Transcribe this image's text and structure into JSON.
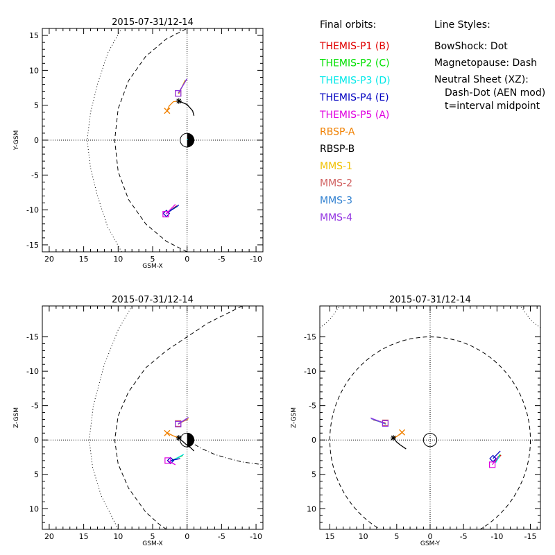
{
  "colors": {
    "THEMIS-P1": "#e00000",
    "THEMIS-P2": "#00e000",
    "THEMIS-P3": "#00e8e8",
    "THEMIS-P4": "#0000c0",
    "THEMIS-P5": "#e000e0",
    "RBSP-A": "#f08000",
    "RBSP-B": "#000000",
    "MMS-1": "#f0c000",
    "MMS-2": "#d06060",
    "MMS-3": "#3080d0",
    "MMS-4": "#9030e0"
  },
  "legend": {
    "orbits_heading": "Final orbits:",
    "orbits": [
      {
        "label": "THEMIS-P1 (B)",
        "key": "THEMIS-P1"
      },
      {
        "label": "THEMIS-P2 (C)",
        "key": "THEMIS-P2"
      },
      {
        "label": "THEMIS-P3 (D)",
        "key": "THEMIS-P3"
      },
      {
        "label": "THEMIS-P4 (E)",
        "key": "THEMIS-P4"
      },
      {
        "label": "THEMIS-P5 (A)",
        "key": "THEMIS-P5"
      },
      {
        "label": "RBSP-A",
        "key": "RBSP-A"
      },
      {
        "label": "RBSP-B",
        "key": "RBSP-B"
      },
      {
        "label": "MMS-1",
        "key": "MMS-1"
      },
      {
        "label": "MMS-2",
        "key": "MMS-2"
      },
      {
        "label": "MMS-3",
        "key": "MMS-3"
      },
      {
        "label": "MMS-4",
        "key": "MMS-4"
      }
    ],
    "styles_heading": "Line Styles:",
    "styles": [
      {
        "text": "BowShock: Dot",
        "indent": false
      },
      {
        "text": "Magnetopause: Dash",
        "indent": false
      },
      {
        "text": "Neutral Sheet (XZ):",
        "indent": false
      },
      {
        "text": "Dash-Dot (AEN mod)",
        "indent": true
      },
      {
        "text": "t=interval midpoint",
        "indent": true
      }
    ]
  },
  "chart_data": [
    {
      "id": "xy",
      "type": "line",
      "title": "2015-07-31/12-14",
      "xlabel": "GSM-X",
      "ylabel": "Y-GSM",
      "xlim": [
        21,
        -11
      ],
      "ylim": [
        16,
        -16
      ],
      "xticks": [
        20,
        15,
        10,
        5,
        0,
        -5,
        -10
      ],
      "xtick_labels": [
        "20",
        "15",
        "10",
        "5",
        "0",
        "-5",
        "-10"
      ],
      "yticks": [
        -15,
        -10,
        -5,
        0,
        5,
        10,
        15
      ],
      "ytick_labels": [
        "-15",
        "-10",
        "-5",
        "0",
        "5",
        "10",
        "15"
      ],
      "earth": "half",
      "boundaries": [
        {
          "name": "bow_shock",
          "style": "dot",
          "points": [
            [
              9.5,
              -16
            ],
            [
              11.5,
              -12.5
            ],
            [
              13,
              -8
            ],
            [
              14,
              -4
            ],
            [
              14.5,
              0
            ],
            [
              14,
              4
            ],
            [
              13,
              8
            ],
            [
              11.5,
              12.5
            ],
            [
              9.5,
              16
            ]
          ]
        },
        {
          "name": "magnetopause",
          "style": "dash",
          "points": [
            [
              0,
              -16
            ],
            [
              3,
              -14.5
            ],
            [
              6,
              -12
            ],
            [
              8.5,
              -8.5
            ],
            [
              10,
              -4.5
            ],
            [
              10.5,
              0
            ],
            [
              10,
              4.5
            ],
            [
              8.5,
              8.5
            ],
            [
              6,
              12
            ],
            [
              3,
              14.5
            ],
            [
              0,
              16
            ]
          ]
        }
      ],
      "series": [
        {
          "key": "THEMIS-P3",
          "points": [
            [
              -0.1,
              0.09
            ],
            [
              0.05,
              0.08
            ]
          ],
          "marker": "none"
        },
        {
          "key": "THEMIS-P1",
          "points": [
            [
              2.9,
              -10.4
            ],
            [
              1.5,
              -9.4
            ]
          ],
          "marker": "none"
        },
        {
          "key": "THEMIS-P2",
          "points": [
            [
              2.8,
              -10.3
            ],
            [
              1.4,
              -9.5
            ]
          ],
          "marker": "none"
        },
        {
          "key": "THEMIS-P3",
          "points": [
            [
              2.7,
              -10.2
            ],
            [
              1.3,
              -9.4
            ]
          ],
          "marker": "none"
        },
        {
          "key": "THEMIS-P4",
          "points": [
            [
              3.0,
              -10.5
            ],
            [
              1.2,
              -9.3
            ]
          ],
          "marker": "diamond"
        },
        {
          "key": "THEMIS-P5",
          "points": [
            [
              3.1,
              -10.6
            ],
            [
              1.7,
              -9.2
            ]
          ],
          "marker": "square"
        },
        {
          "key": "RBSP-A",
          "points": [
            [
              1.2,
              5.6
            ],
            [
              2.0,
              5.5
            ],
            [
              2.6,
              4.9
            ],
            [
              2.9,
              4.2
            ]
          ],
          "marker": "x_end"
        },
        {
          "key": "RBSP-B",
          "points": [
            [
              1.2,
              5.6
            ],
            [
              0.0,
              5.1
            ],
            [
              -0.8,
              4.2
            ],
            [
              -1.0,
              3.5
            ]
          ],
          "marker": "asterisk_start"
        },
        {
          "key": "MMS-1",
          "points": [
            [
              1.2,
              6.6
            ],
            [
              0.3,
              8.6
            ]
          ],
          "marker": "none"
        },
        {
          "key": "MMS-2",
          "points": [
            [
              1.3,
              6.7
            ],
            [
              0.2,
              8.5
            ]
          ],
          "marker": "square"
        },
        {
          "key": "MMS-3",
          "points": [
            [
              1.2,
              6.8
            ],
            [
              0.1,
              8.7
            ]
          ],
          "marker": "none"
        },
        {
          "key": "MMS-4",
          "points": [
            [
              1.3,
              6.7
            ],
            [
              0.0,
              8.8
            ]
          ],
          "marker": "square"
        }
      ]
    },
    {
      "id": "xz",
      "type": "line",
      "title": "2015-07-31/12-14",
      "xlabel": "GSM-X",
      "ylabel": "Z-GSM",
      "xlim": [
        21,
        -11
      ],
      "ylim": [
        -19.5,
        13
      ],
      "xticks": [
        20,
        15,
        10,
        5,
        0,
        -5,
        -10
      ],
      "xtick_labels": [
        "20",
        "15",
        "10",
        "5",
        "0",
        "-5",
        "-10"
      ],
      "yticks": [
        -15,
        -10,
        -5,
        0,
        5,
        10
      ],
      "ytick_labels": [
        "-15",
        "-10",
        "-5",
        "0",
        "5",
        "10"
      ],
      "earth": "half",
      "boundaries": [
        {
          "name": "bow_shock",
          "style": "dot",
          "points": [
            [
              8,
              -19.5
            ],
            [
              10,
              -16
            ],
            [
              12,
              -11
            ],
            [
              13.6,
              -5
            ],
            [
              14.2,
              0
            ],
            [
              13.7,
              4
            ],
            [
              12.5,
              8
            ],
            [
              11,
              11
            ],
            [
              10,
              13
            ]
          ]
        },
        {
          "name": "magnetopause",
          "style": "dash",
          "points": [
            [
              -8,
              -19.5
            ],
            [
              -3,
              -17
            ],
            [
              0,
              -15
            ],
            [
              3,
              -13
            ],
            [
              6,
              -10.5
            ],
            [
              8.5,
              -7
            ],
            [
              10,
              -3.5
            ],
            [
              10.5,
              0
            ],
            [
              10,
              3.5
            ],
            [
              8.5,
              7
            ],
            [
              6,
              10.5
            ],
            [
              4,
              12.3
            ],
            [
              3,
              13
            ]
          ]
        },
        {
          "name": "neutral_sheet",
          "style": "dashdot",
          "points": [
            [
              0,
              0
            ],
            [
              -2,
              1.2
            ],
            [
              -4,
              2.1
            ],
            [
              -6,
              2.7
            ],
            [
              -8,
              3.2
            ],
            [
              -11,
              3.6
            ]
          ]
        }
      ],
      "series": [
        {
          "key": "THEMIS-P1",
          "points": [
            [
              2.4,
              3.1
            ],
            [
              0.6,
              2.2
            ]
          ],
          "marker": "none"
        },
        {
          "key": "THEMIS-P2",
          "points": [
            [
              2.3,
              3.0
            ],
            [
              0.7,
              2.3
            ]
          ],
          "marker": "none"
        },
        {
          "key": "THEMIS-P3",
          "points": [
            [
              2.5,
              3.2
            ],
            [
              0.5,
              2.1
            ]
          ],
          "marker": "none"
        },
        {
          "key": "THEMIS-P4",
          "points": [
            [
              2.4,
              3.0
            ],
            [
              1.0,
              2.7
            ]
          ],
          "marker": "diamond"
        },
        {
          "key": "THEMIS-P5",
          "points": [
            [
              2.8,
              3.0
            ],
            [
              1.7,
              3.6
            ]
          ],
          "marker": "square"
        },
        {
          "key": "RBSP-A",
          "points": [
            [
              1.2,
              -0.3
            ],
            [
              2.0,
              -0.6
            ],
            [
              2.6,
              -0.9
            ],
            [
              2.9,
              -1.0
            ]
          ],
          "marker": "x_end"
        },
        {
          "key": "RBSP-B",
          "points": [
            [
              1.2,
              -0.3
            ],
            [
              0.2,
              0.6
            ],
            [
              -0.6,
              1.2
            ],
            [
              -1.0,
              1.6
            ]
          ],
          "marker": "asterisk_start"
        },
        {
          "key": "MMS-1",
          "points": [
            [
              1.3,
              -2.3
            ],
            [
              -0.2,
              -3.1
            ]
          ],
          "marker": "none"
        },
        {
          "key": "MMS-2",
          "points": [
            [
              1.3,
              -2.4
            ],
            [
              -0.1,
              -3.0
            ]
          ],
          "marker": "square"
        },
        {
          "key": "MMS-3",
          "points": [
            [
              1.2,
              -2.4
            ],
            [
              -0.1,
              -3.2
            ]
          ],
          "marker": "none"
        },
        {
          "key": "MMS-4",
          "points": [
            [
              1.3,
              -2.3
            ],
            [
              -0.2,
              -3.3
            ]
          ],
          "marker": "square"
        }
      ]
    },
    {
      "id": "yz",
      "type": "line",
      "title": "2015-07-31/12-14",
      "xlabel": "GSM-Y",
      "ylabel": "Z-GSM",
      "xlim": [
        16.5,
        -16.5
      ],
      "ylim": [
        -19.5,
        13
      ],
      "xticks": [
        15,
        10,
        5,
        0,
        -5,
        -10,
        -15
      ],
      "xtick_labels": [
        "15",
        "10",
        "5",
        "0",
        "-5",
        "-10",
        "-15"
      ],
      "yticks": [
        -15,
        -10,
        -5,
        0,
        5,
        10
      ],
      "ytick_labels": [
        "-15",
        "-10",
        "-5",
        "0",
        "5",
        "10"
      ],
      "earth": "open",
      "boundaries": [
        {
          "name": "magnetopause",
          "style": "dash",
          "circle": [
            0,
            0,
            15
          ]
        },
        {
          "name": "bow_shock_lower_left",
          "style": "dot",
          "points": [
            [
              16.5,
              -16.3
            ],
            [
              15,
              -17.5
            ],
            [
              13.5,
              -19.5
            ]
          ]
        },
        {
          "name": "bow_shock_lower_right",
          "style": "dot",
          "points": [
            [
              -16.5,
              -16.3
            ],
            [
              -15,
              -17.5
            ],
            [
              -13.5,
              -19.5
            ]
          ]
        }
      ],
      "series": [
        {
          "key": "THEMIS-P1",
          "points": [
            [
              -9.7,
              3.2
            ],
            [
              -10.6,
              2.2
            ]
          ],
          "marker": "none"
        },
        {
          "key": "THEMIS-P2",
          "points": [
            [
              -9.6,
              3.1
            ],
            [
              -10.5,
              2.1
            ]
          ],
          "marker": "none"
        },
        {
          "key": "THEMIS-P3",
          "points": [
            [
              -9.8,
              3.3
            ],
            [
              -10.4,
              2.3
            ]
          ],
          "marker": "none"
        },
        {
          "key": "THEMIS-P4",
          "points": [
            [
              -9.4,
              2.7
            ],
            [
              -10.5,
              1.6
            ]
          ],
          "marker": "diamond"
        },
        {
          "key": "THEMIS-P5",
          "points": [
            [
              -9.3,
              3.6
            ],
            [
              -10.2,
              2.4
            ]
          ],
          "marker": "square"
        },
        {
          "key": "RBSP-A",
          "points": [
            [
              5.5,
              -0.3
            ],
            [
              5.0,
              -0.5
            ],
            [
              4.6,
              -0.8
            ],
            [
              4.2,
              -1.1
            ]
          ],
          "marker": "x_end"
        },
        {
          "key": "RBSP-B",
          "points": [
            [
              5.5,
              -0.3
            ],
            [
              5.0,
              0.3
            ],
            [
              4.5,
              0.7
            ],
            [
              3.6,
              1.3
            ]
          ],
          "marker": "asterisk_start"
        },
        {
          "key": "MMS-1",
          "points": [
            [
              6.6,
              -2.4
            ],
            [
              8.6,
              -3.0
            ]
          ],
          "marker": "none"
        },
        {
          "key": "MMS-2",
          "points": [
            [
              6.7,
              -2.5
            ],
            [
              8.5,
              -2.9
            ]
          ],
          "marker": "square"
        },
        {
          "key": "MMS-3",
          "points": [
            [
              6.6,
              -2.3
            ],
            [
              8.8,
              -3.1
            ]
          ],
          "marker": "none"
        },
        {
          "key": "MMS-4",
          "points": [
            [
              6.7,
              -2.4
            ],
            [
              8.9,
              -3.2
            ]
          ],
          "marker": "square"
        }
      ]
    }
  ]
}
